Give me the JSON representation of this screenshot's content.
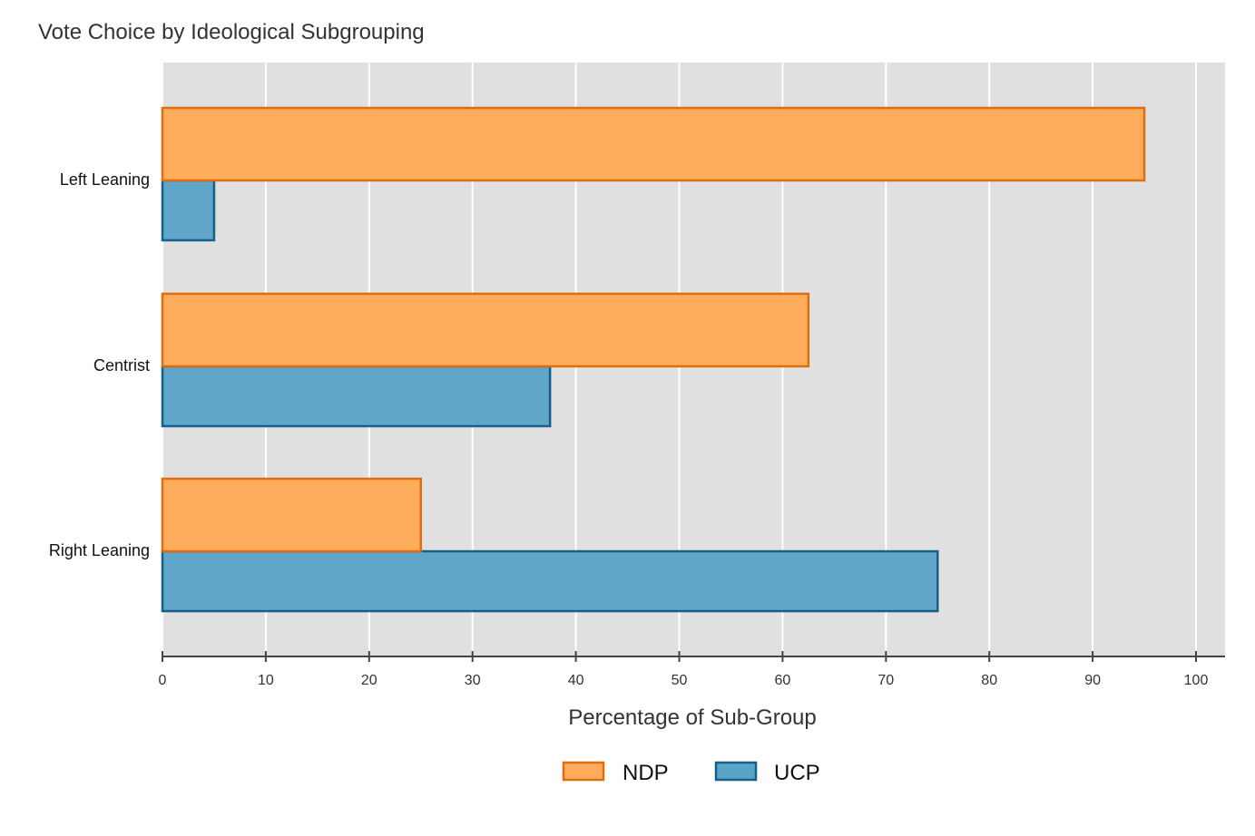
{
  "chart_data": {
    "type": "bar",
    "orientation": "horizontal",
    "title": "Vote Choice by Ideological Subgrouping",
    "xlabel": "Percentage of Sub-Group",
    "ylabel": "",
    "xlim": [
      0,
      103
    ],
    "xticks": [
      0,
      10,
      20,
      30,
      40,
      50,
      60,
      70,
      80,
      90,
      100
    ],
    "categories": [
      "Left Leaning",
      "Centrist",
      "Right Leaning"
    ],
    "series": [
      {
        "name": "NDP",
        "values": [
          95,
          62.5,
          25
        ],
        "fill": "#FFAD5C",
        "stroke": "#E06D0B"
      },
      {
        "name": "UCP",
        "values": [
          5,
          37.5,
          75
        ],
        "fill": "#5BA4C8",
        "stroke": "#14608A"
      }
    ],
    "grid": true,
    "legend_position": "bottom",
    "background": "#E0E0E0"
  }
}
